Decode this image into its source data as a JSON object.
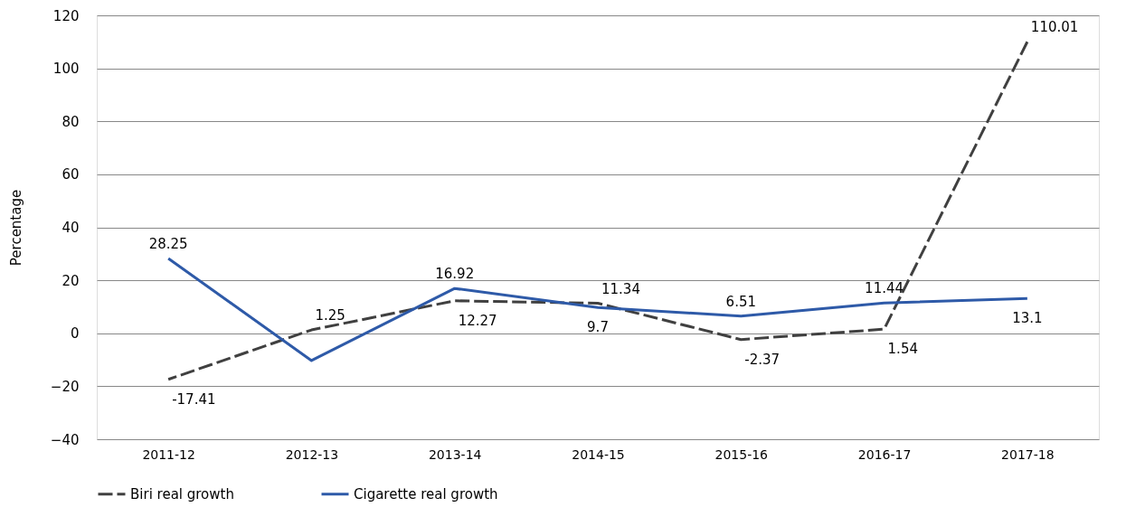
{
  "chart_data": {
    "type": "line",
    "ylabel": "Percentage",
    "categories": [
      "2011-12",
      "2012-13",
      "2013-14",
      "2014-15",
      "2015-16",
      "2016-17",
      "2017-18"
    ],
    "series": [
      {
        "name": "Biri real growth",
        "color": "#404040",
        "line_style": "dashed",
        "values": [
          -17.41,
          1.25,
          12.27,
          11.34,
          -2.37,
          1.54,
          110.01
        ],
        "value_labels": [
          "-17.41",
          "1.25",
          "12.27",
          "11.34",
          "-2.37",
          "1.54",
          "110.01"
        ]
      },
      {
        "name": "Cigarette real growth",
        "color": "#2e5aa8",
        "line_style": "solid",
        "values": [
          28.25,
          -10.3,
          16.92,
          9.7,
          6.51,
          11.44,
          13.1
        ],
        "value_labels": [
          "28.25",
          null,
          "16.92",
          "9.7",
          "6.51",
          "11.44",
          "13.1"
        ]
      }
    ],
    "ylim": [
      -40,
      120
    ],
    "yticks": [
      -40,
      -20,
      0,
      20,
      40,
      60,
      80,
      100,
      120
    ],
    "grid": "y",
    "legend": "bottom left",
    "marker": "none"
  }
}
